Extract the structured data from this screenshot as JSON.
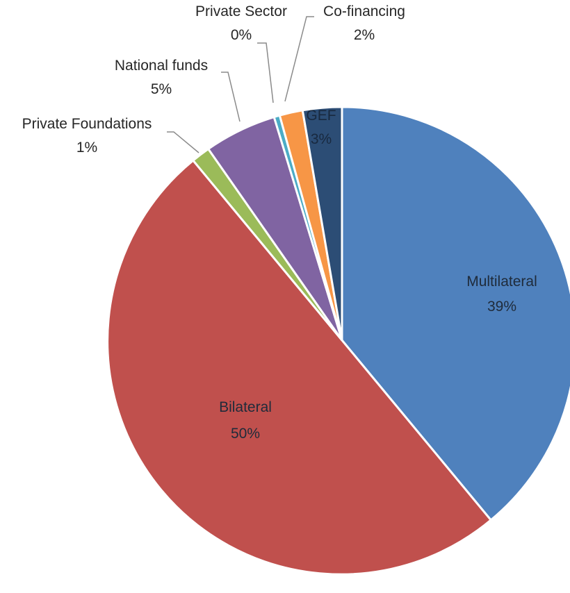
{
  "chart_data": {
    "type": "pie",
    "title": "",
    "slices": [
      {
        "name": "Multilateral",
        "value": 39,
        "label": "39%",
        "color": "#4f81bd"
      },
      {
        "name": "Bilateral",
        "value": 50,
        "label": "50%",
        "color": "#c0504d"
      },
      {
        "name": "Private Foundations",
        "value": 1.3,
        "label": "1%",
        "color": "#9bbb59"
      },
      {
        "name": "National funds",
        "value": 5,
        "label": "5%",
        "color": "#8064a2"
      },
      {
        "name": "Private Sector",
        "value": 0.4,
        "label": "0%",
        "color": "#4bacc6"
      },
      {
        "name": "Co-financing",
        "value": 1.6,
        "label": "2%",
        "color": "#f79646"
      },
      {
        "name": "GEF",
        "value": 2.7,
        "label": "3%",
        "color": "#2c4d75"
      }
    ],
    "start_angle": "12 o'clock",
    "direction": "clockwise",
    "legend": "none"
  }
}
